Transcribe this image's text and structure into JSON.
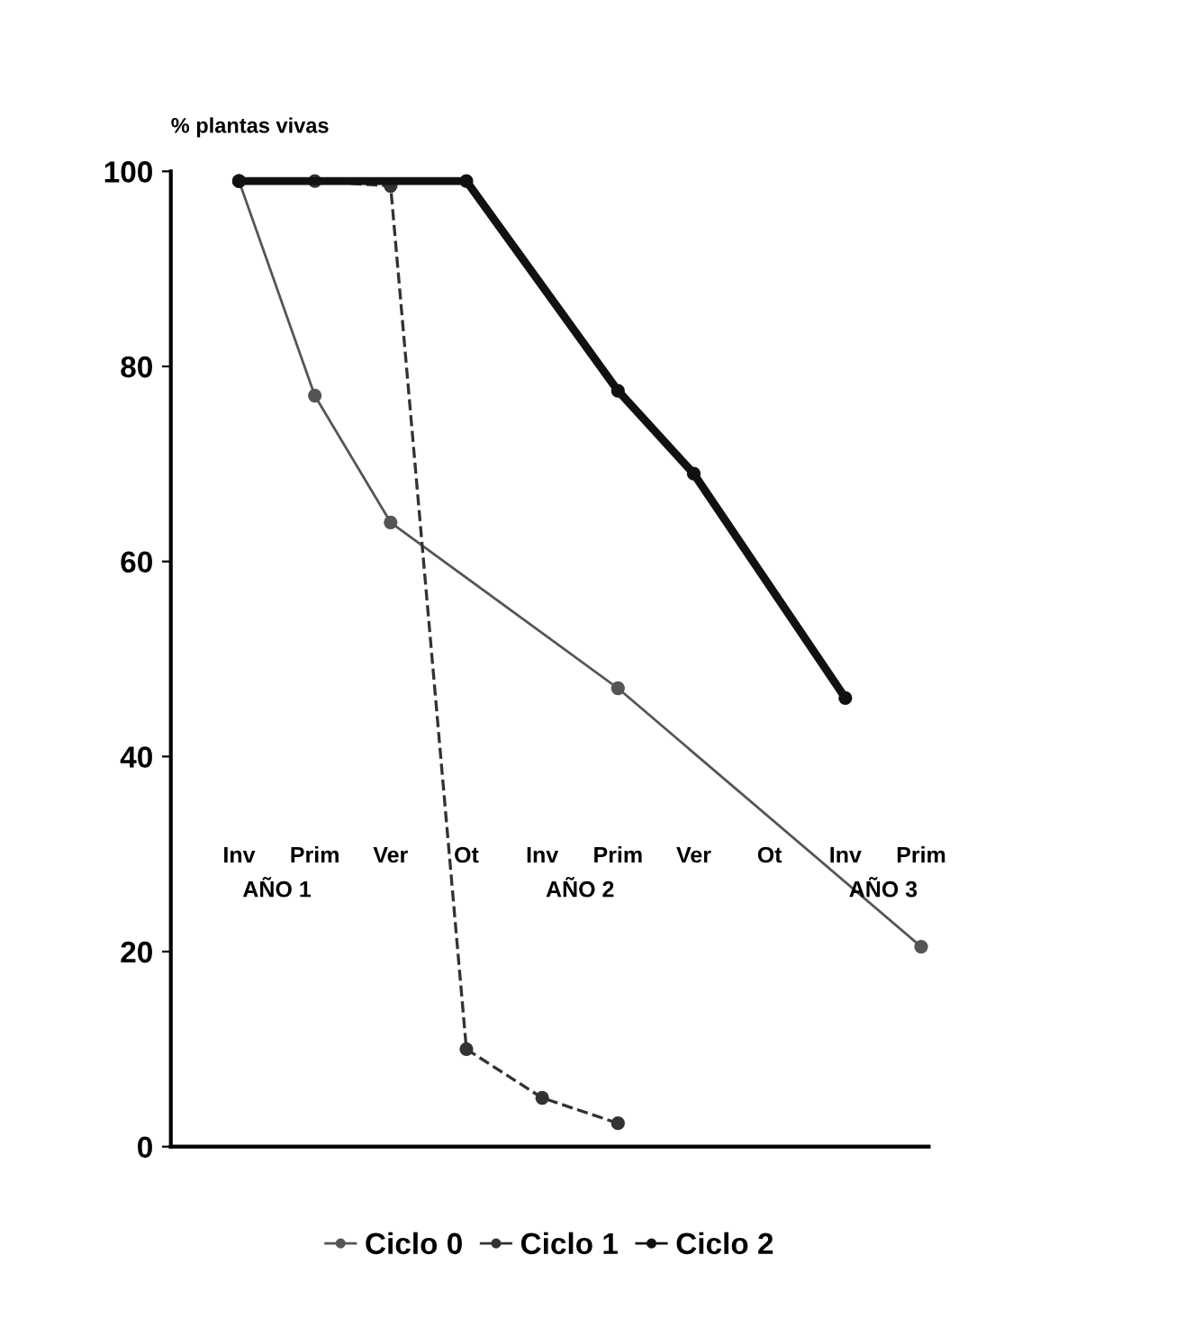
{
  "chart_data": {
    "type": "line",
    "ylabel": "% plantas vivas",
    "categories": [
      "Inv",
      "Prim",
      "Ver",
      "Ot",
      "Inv",
      "Prim",
      "Ver",
      "Ot",
      "Inv",
      "Prim"
    ],
    "ylim": [
      0,
      100
    ],
    "yticks": [
      0,
      20,
      40,
      60,
      80,
      100
    ],
    "annotations": [
      "AÑO 1",
      "AÑO 2",
      "AÑO 3"
    ],
    "marker": "circle",
    "grid": false,
    "legend": "bottom",
    "series": [
      {
        "name": "Ciclo 0",
        "color": "#555555",
        "line_style": "solid",
        "values": [
          99,
          77,
          64,
          null,
          null,
          47,
          null,
          null,
          null,
          20.5
        ]
      },
      {
        "name": "Ciclo 1",
        "color": "#333333",
        "line_style": "dashed",
        "values": [
          99,
          99,
          98.5,
          10,
          5,
          2.4,
          null,
          null,
          null,
          null
        ]
      },
      {
        "name": "Ciclo 2",
        "color": "#111111",
        "line_style": "solid",
        "values": [
          99,
          null,
          null,
          99,
          null,
          77.5,
          69,
          null,
          46,
          null
        ]
      }
    ]
  }
}
